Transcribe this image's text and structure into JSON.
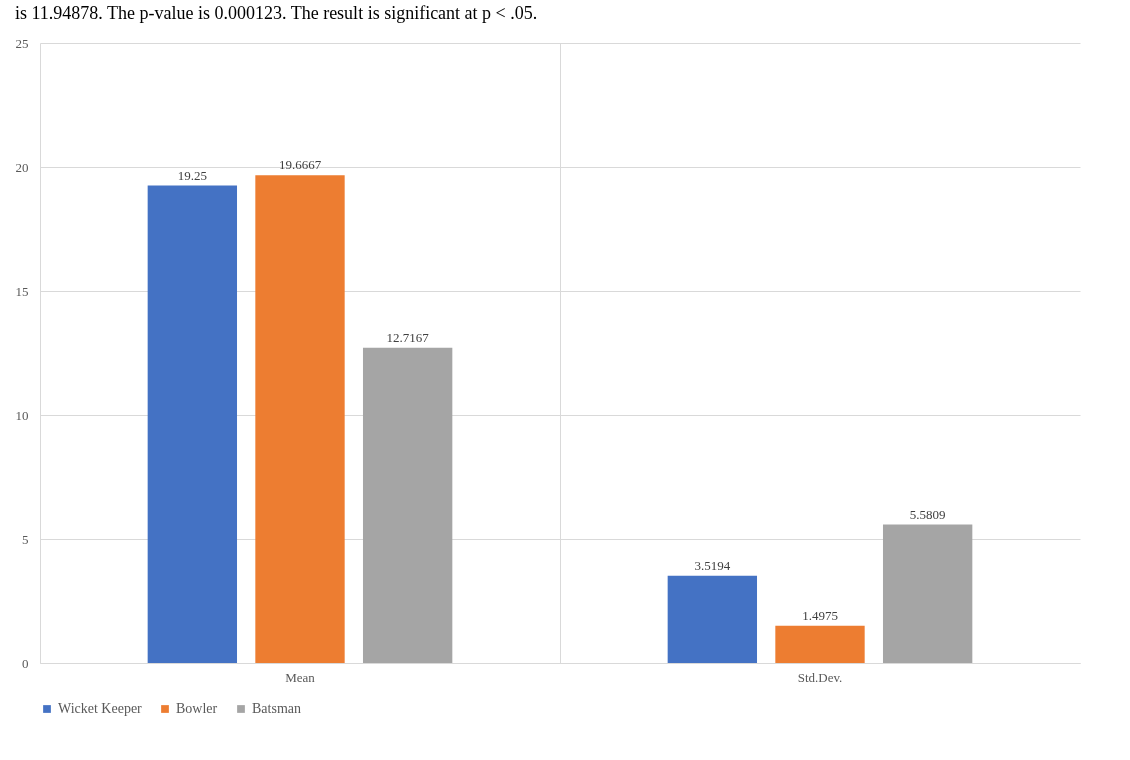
{
  "chart_data": {
    "type": "bar",
    "annotations": [
      "is 11.94878. The p-value is 0.000123. The result is significant at p < .05."
    ],
    "categories": [
      "Mean",
      "Std.Dev."
    ],
    "series": [
      {
        "name": "Wicket Keeper",
        "color": "#4472c4",
        "values": [
          19.25,
          3.5194
        ]
      },
      {
        "name": "Bowler",
        "color": "#ed7d31",
        "values": [
          19.6667,
          1.4975
        ]
      },
      {
        "name": "Batsman",
        "color": "#a5a5a5",
        "values": [
          12.7167,
          5.5809
        ]
      }
    ],
    "ylim": [
      0,
      25
    ],
    "yticks": [
      0,
      5,
      10,
      15,
      20,
      25
    ],
    "grid": true,
    "legend": "bottom",
    "data_labels": true
  }
}
